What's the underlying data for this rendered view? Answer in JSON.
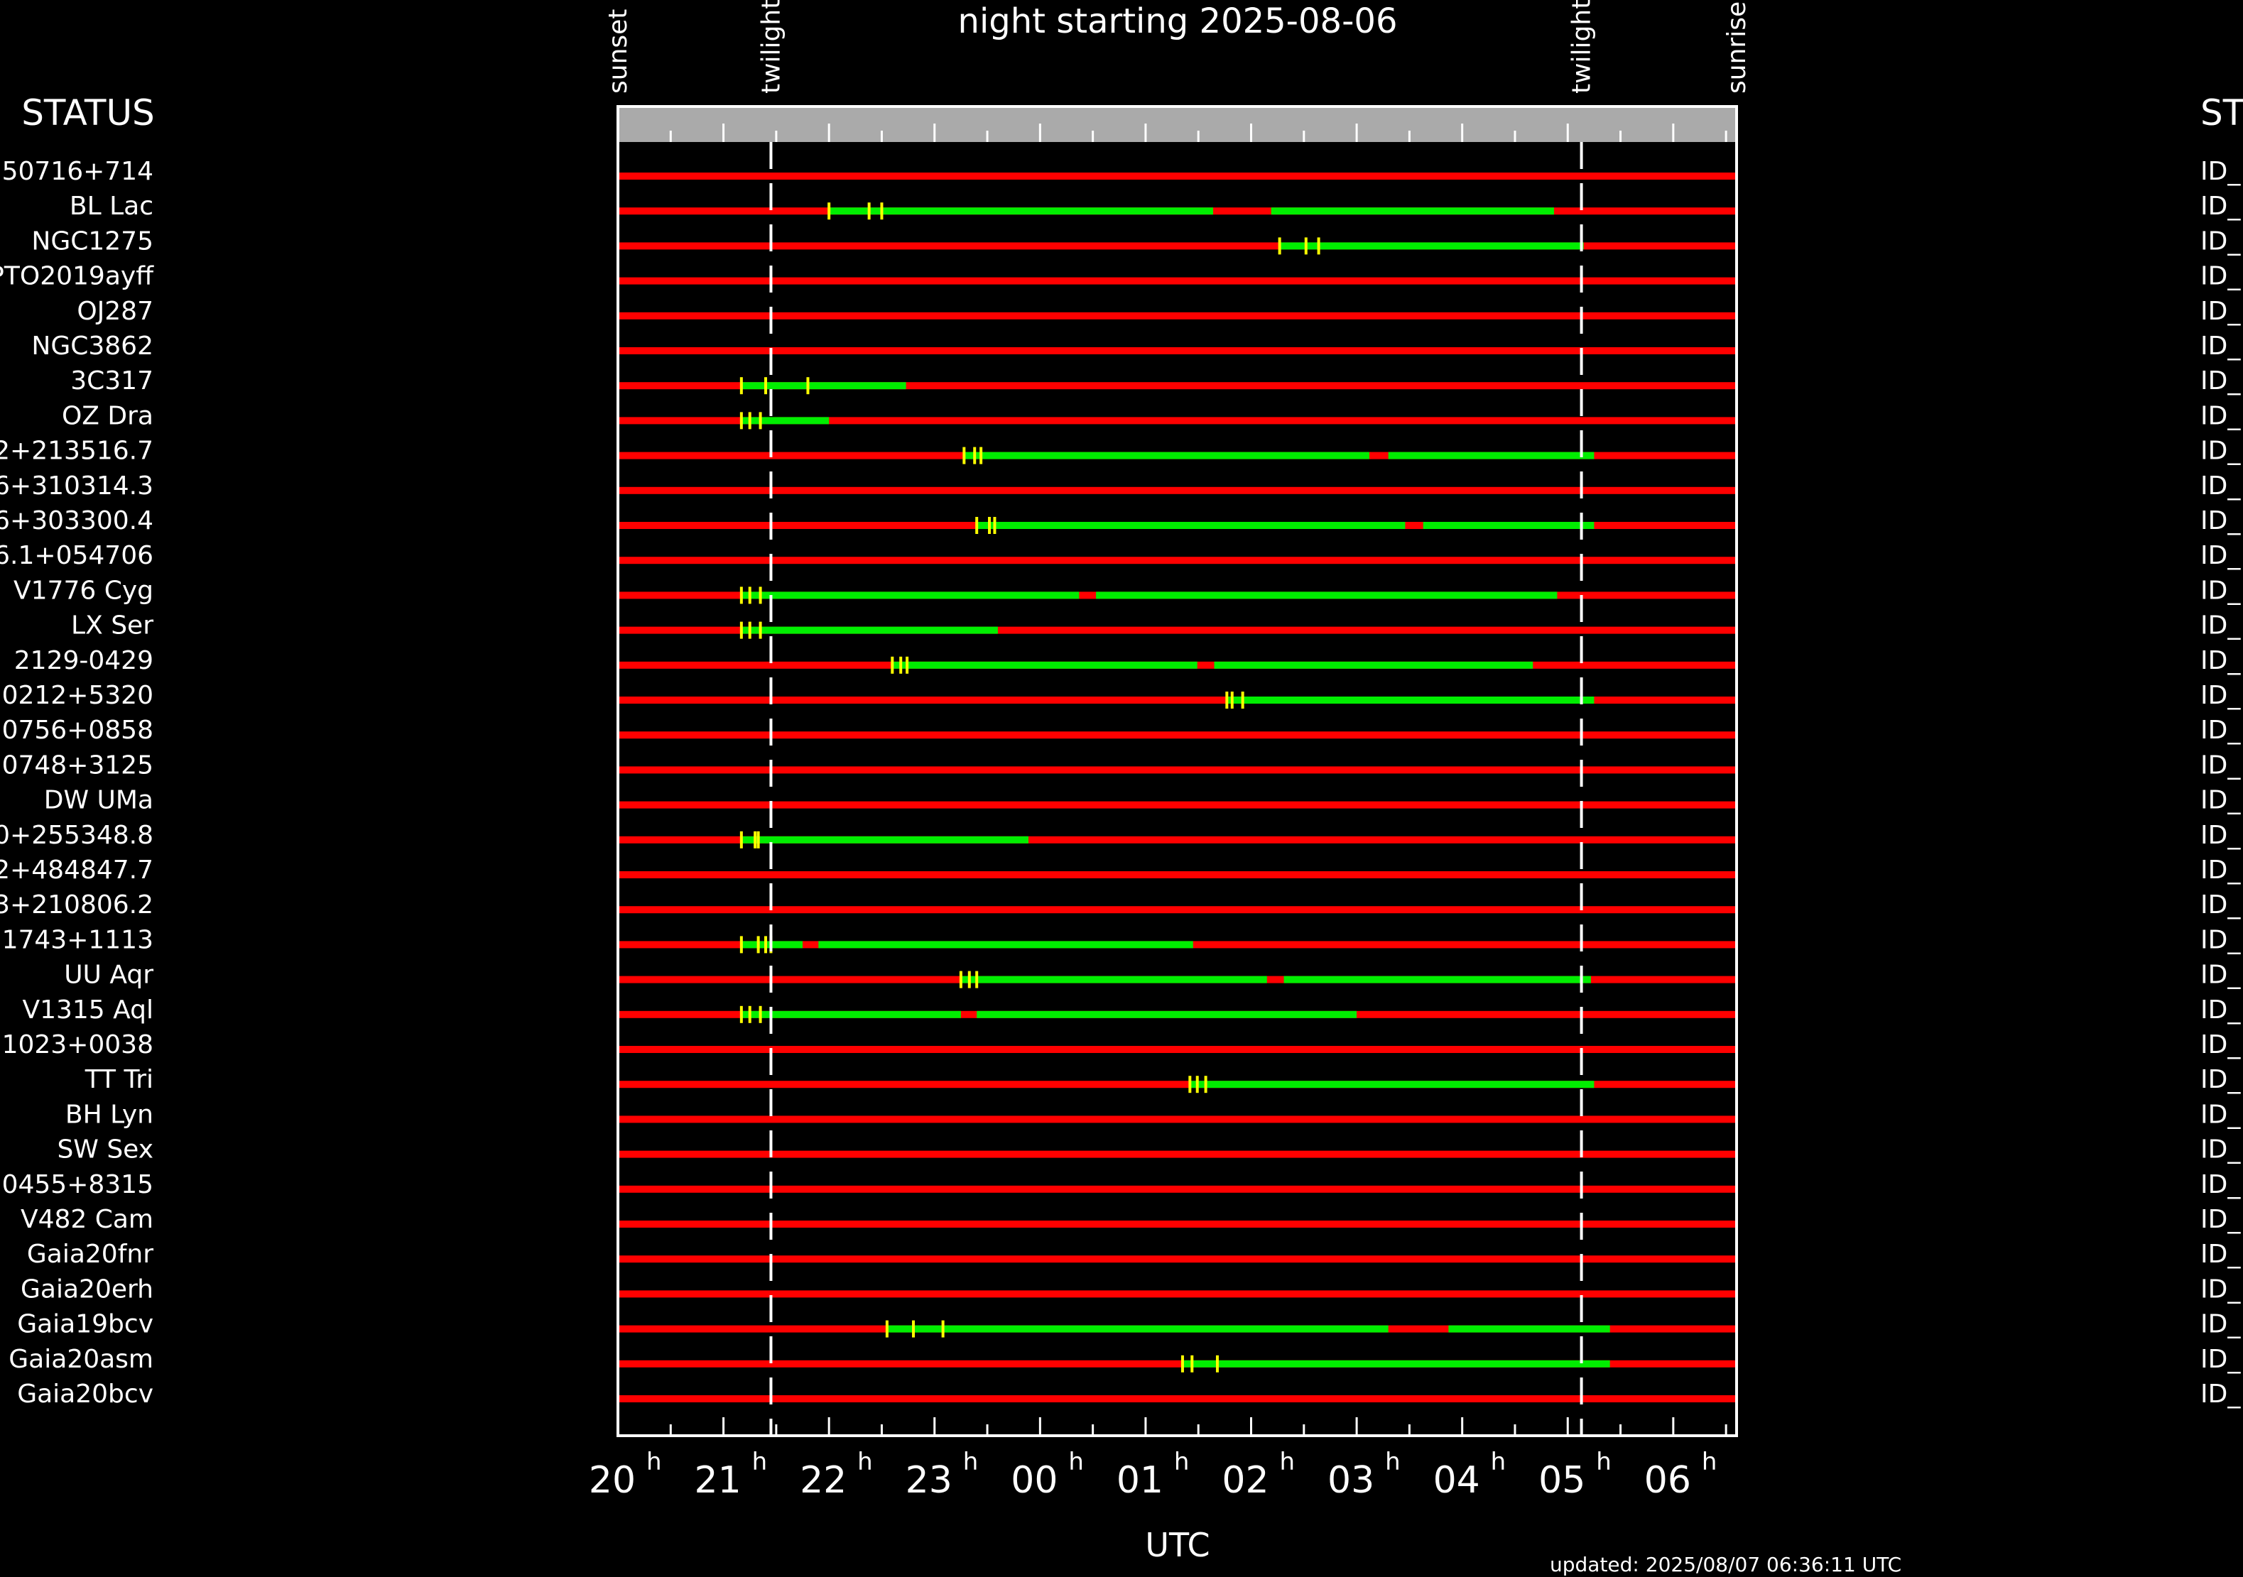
{
  "chart_data": {
    "type": "timeline",
    "title": "night starting 2025-08-06",
    "xlabel": "UTC",
    "updated": "updated: 2025/08/07 06:36:11 UTC",
    "status_header_left": "STATUS",
    "status_header_right": "ST",
    "x_range": [
      20.0,
      30.6
    ],
    "ticks": [
      {
        "h": 20,
        "label": "20"
      },
      {
        "h": 21,
        "label": "21"
      },
      {
        "h": 22,
        "label": "22"
      },
      {
        "h": 23,
        "label": "23"
      },
      {
        "h": 24,
        "label": "00"
      },
      {
        "h": 25,
        "label": "01"
      },
      {
        "h": 26,
        "label": "02"
      },
      {
        "h": 27,
        "label": "03"
      },
      {
        "h": 28,
        "label": "04"
      },
      {
        "h": 29,
        "label": "05"
      },
      {
        "h": 30,
        "label": "06"
      }
    ],
    "tick_suffix": "h",
    "events": [
      {
        "label": "sunset",
        "h": 20.0
      },
      {
        "label": "twilight",
        "h": 21.45
      },
      {
        "label": "twilight",
        "h": 29.13
      },
      {
        "label": "sunrise",
        "h": 30.6
      }
    ],
    "twilight_lines": [
      21.45,
      29.13
    ],
    "colors": {
      "unobservable": "#ff0000",
      "observable": "#00ee00",
      "marker": "#ffff00",
      "header_band": "#aaaaaa",
      "dashes": "#ffffff"
    },
    "targets": [
      {
        "name": "50716+714",
        "status": "ID_",
        "green": [],
        "marks": []
      },
      {
        "name": "BL Lac",
        "status": "ID_",
        "green": [
          [
            22.0,
            25.64
          ],
          [
            26.19,
            28.87
          ]
        ],
        "marks": [
          22.0,
          22.38,
          22.5
        ]
      },
      {
        "name": "NGC1275",
        "status": "ID_",
        "green": [
          [
            26.27,
            29.15
          ]
        ],
        "marks": [
          26.27,
          26.52,
          26.64
        ]
      },
      {
        "name": "PTO2019ayff",
        "status": "ID_",
        "green": [],
        "marks": []
      },
      {
        "name": "OJ287",
        "status": "ID_",
        "green": [],
        "marks": []
      },
      {
        "name": "NGC3862",
        "status": "ID_",
        "green": [],
        "marks": []
      },
      {
        "name": "3C317",
        "status": "ID_",
        "green": [
          [
            21.17,
            22.73
          ]
        ],
        "marks": [
          21.17,
          21.4,
          21.8
        ]
      },
      {
        "name": "OZ Dra",
        "status": "ID_",
        "green": [
          [
            21.17,
            22.0
          ]
        ],
        "marks": [
          21.17,
          21.25,
          21.35
        ]
      },
      {
        "name": "2+213516.7",
        "status": "ID_",
        "green": [
          [
            23.28,
            27.12
          ],
          [
            27.3,
            29.25
          ]
        ],
        "marks": [
          23.28,
          23.38,
          23.44
        ]
      },
      {
        "name": "6+310314.3",
        "status": "ID_",
        "green": [],
        "marks": []
      },
      {
        "name": "6+303300.4",
        "status": "ID_",
        "green": [
          [
            23.4,
            27.46
          ],
          [
            27.63,
            29.25
          ]
        ],
        "marks": [
          23.4,
          23.52,
          23.57
        ]
      },
      {
        "name": "6.1+054706",
        "status": "ID_",
        "green": [],
        "marks": []
      },
      {
        "name": "V1776 Cyg",
        "status": "ID_",
        "green": [
          [
            21.17,
            24.37
          ],
          [
            24.53,
            28.9
          ]
        ],
        "marks": [
          21.17,
          21.25,
          21.35
        ]
      },
      {
        "name": "LX Ser",
        "status": "ID_",
        "green": [
          [
            21.17,
            23.6
          ]
        ],
        "marks": [
          21.17,
          21.25,
          21.35
        ]
      },
      {
        "name": "2129-0429",
        "status": "ID_",
        "green": [
          [
            22.6,
            25.49
          ],
          [
            25.65,
            28.67
          ]
        ],
        "marks": [
          22.6,
          22.68,
          22.74
        ]
      },
      {
        "name": "0212+5320",
        "status": "ID_",
        "green": [
          [
            25.77,
            29.25
          ]
        ],
        "marks": [
          25.77,
          25.82,
          25.92
        ]
      },
      {
        "name": "0756+0858",
        "status": "ID_",
        "green": [],
        "marks": []
      },
      {
        "name": "0748+3125",
        "status": "ID_",
        "green": [],
        "marks": []
      },
      {
        "name": "DW UMa",
        "status": "ID_",
        "green": [],
        "marks": []
      },
      {
        "name": "0+255348.8",
        "status": "ID_",
        "green": [
          [
            21.17,
            23.89
          ]
        ],
        "marks": [
          21.17,
          21.3,
          21.33
        ]
      },
      {
        "name": "2+484847.7",
        "status": "ID_",
        "green": [],
        "marks": []
      },
      {
        "name": "3+210806.2",
        "status": "ID_",
        "green": [],
        "marks": []
      },
      {
        "name": "1743+1113",
        "status": "ID_",
        "green": [
          [
            21.17,
            21.75
          ],
          [
            21.9,
            25.45
          ]
        ],
        "marks": [
          21.17,
          21.33,
          21.4,
          21.45
        ]
      },
      {
        "name": "UU Aqr",
        "status": "ID_",
        "green": [
          [
            23.25,
            26.15
          ],
          [
            26.31,
            29.22
          ]
        ],
        "marks": [
          23.25,
          23.33,
          23.4
        ]
      },
      {
        "name": "V1315 Aql",
        "status": "ID_",
        "green": [
          [
            21.17,
            23.25
          ],
          [
            23.4,
            27.0
          ]
        ],
        "marks": [
          21.17,
          21.25,
          21.35
        ]
      },
      {
        "name": "1023+0038",
        "status": "ID_",
        "green": [],
        "marks": []
      },
      {
        "name": "TT Tri",
        "status": "ID_",
        "green": [
          [
            25.42,
            29.25
          ]
        ],
        "marks": [
          25.42,
          25.49,
          25.57
        ]
      },
      {
        "name": "BH Lyn",
        "status": "ID_",
        "green": [],
        "marks": []
      },
      {
        "name": "SW Sex",
        "status": "ID_",
        "green": [],
        "marks": []
      },
      {
        "name": "0455+8315",
        "status": "ID_",
        "green": [],
        "marks": []
      },
      {
        "name": "V482 Cam",
        "status": "ID_",
        "green": [],
        "marks": []
      },
      {
        "name": "Gaia20fnr",
        "status": "ID_",
        "green": [],
        "marks": []
      },
      {
        "name": "Gaia20erh",
        "status": "ID_",
        "green": [],
        "marks": []
      },
      {
        "name": "Gaia19bcv",
        "status": "ID_",
        "green": [
          [
            22.55,
            27.3
          ],
          [
            27.87,
            29.4
          ]
        ],
        "marks": [
          22.55,
          22.8,
          23.08
        ]
      },
      {
        "name": "Gaia20asm",
        "status": "ID_",
        "green": [
          [
            25.35,
            29.4
          ]
        ],
        "marks": [
          25.35,
          25.44,
          25.68
        ]
      },
      {
        "name": "Gaia20bcv",
        "status": "ID_",
        "green": [],
        "marks": []
      }
    ]
  }
}
